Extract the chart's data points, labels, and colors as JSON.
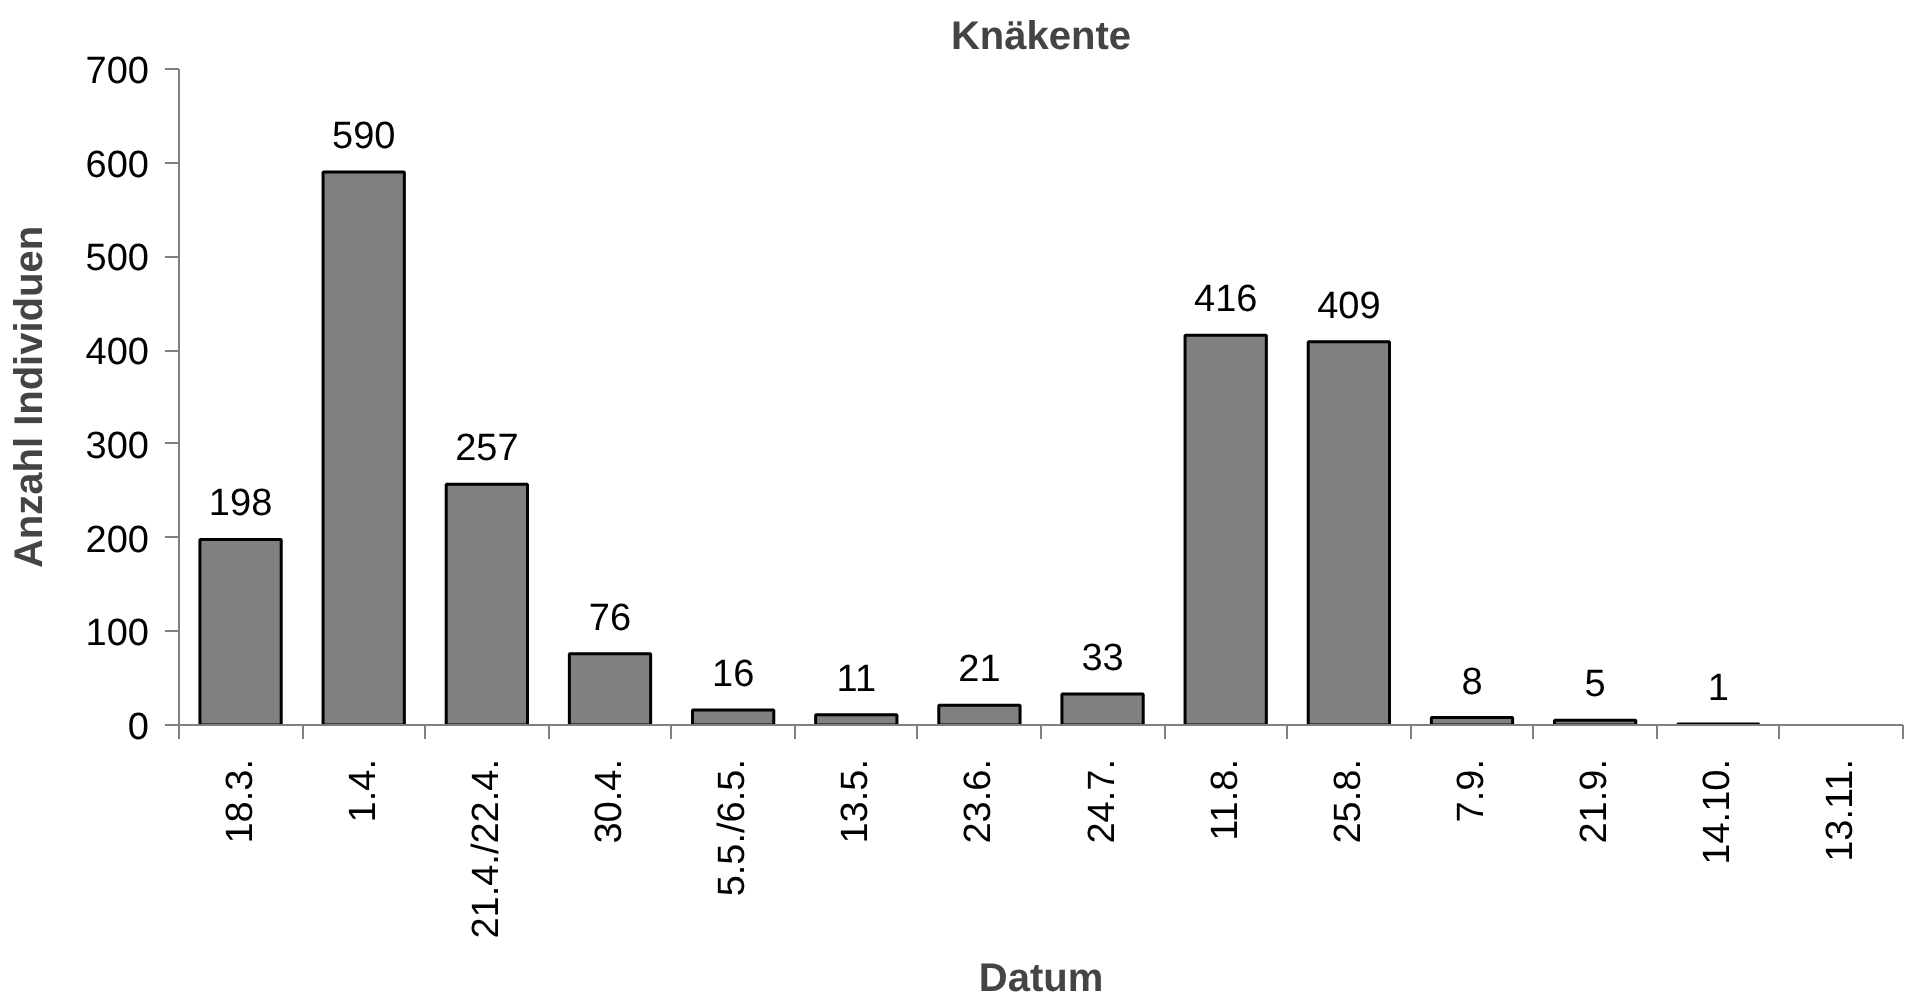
{
  "chart_data": {
    "type": "bar",
    "title": "Knäkente",
    "xlabel": "Datum",
    "ylabel": "Anzahl Individuen",
    "categories": [
      "18.3.",
      "1.4.",
      "21.4./22.4.",
      "30.4.",
      "5.5./6.5.",
      "13.5.",
      "23.6.",
      "24.7.",
      "11.8.",
      "25.8.",
      "7.9.",
      "21.9.",
      "14.10.",
      "13.11."
    ],
    "values": [
      198,
      590,
      257,
      76,
      16,
      11,
      21,
      33,
      416,
      409,
      8,
      5,
      1,
      null
    ],
    "color": "#808080",
    "ylim": [
      0,
      700
    ],
    "yticks": [
      0,
      100,
      200,
      300,
      400,
      500,
      600,
      700
    ],
    "data_labels": true,
    "grid": false
  }
}
